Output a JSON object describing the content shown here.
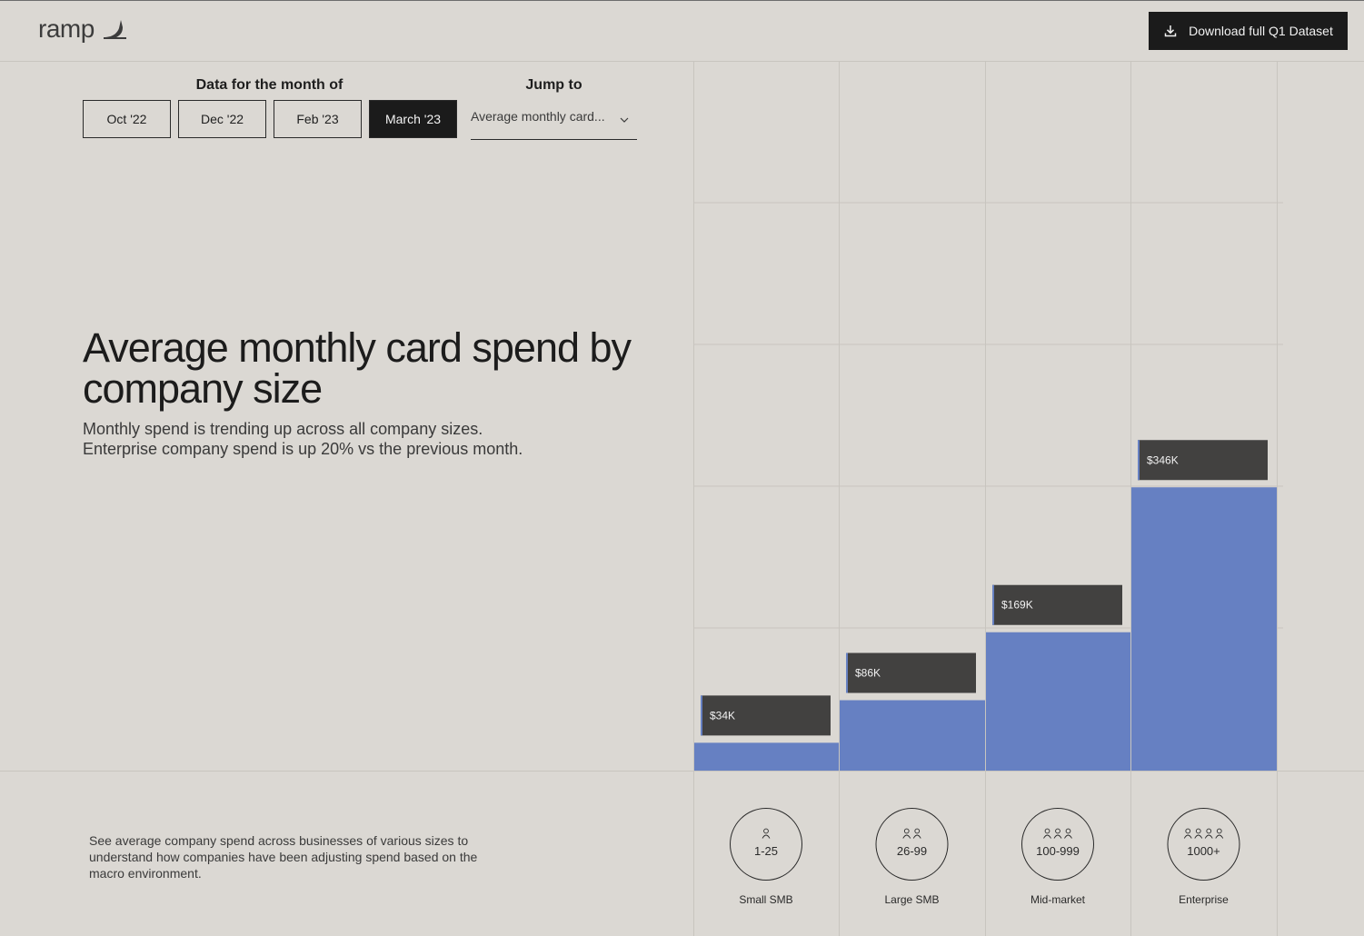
{
  "brand": {
    "name": "ramp"
  },
  "header": {
    "download_label": "Download full Q1 Dataset"
  },
  "controls": {
    "month_heading": "Data for the month of",
    "months": [
      {
        "label": "Oct '22",
        "active": false
      },
      {
        "label": "Dec '22",
        "active": false
      },
      {
        "label": "Feb '23",
        "active": false
      },
      {
        "label": "March '23",
        "active": true
      }
    ],
    "jump_heading": "Jump to",
    "jump_value": "Average monthly card..."
  },
  "content": {
    "title": "Average monthly card spend by company size",
    "subtitle_line1": "Monthly spend is trending up across all company sizes.",
    "subtitle_line2": "Enterprise company spend is up 20% vs the previous month.",
    "footer_text": "See average company spend across businesses of various sizes to understand how companies have been adjusting spend based on the macro environment."
  },
  "colors": {
    "bar": "#6680c2",
    "label_bg": "#424140",
    "background": "#dbd8d3"
  },
  "chart_data": {
    "type": "bar",
    "title": "Average monthly card spend by company size",
    "categories": [
      "Small SMB",
      "Large SMB",
      "Mid-market",
      "Enterprise"
    ],
    "category_codes": [
      "1-25",
      "26-99",
      "100-999",
      "1000+"
    ],
    "category_icon_counts": [
      1,
      2,
      3,
      4
    ],
    "values": [
      34,
      86,
      169,
      346
    ],
    "value_labels": [
      "$34K",
      "$86K",
      "$169K",
      "$346K"
    ],
    "unit": "thousands USD",
    "ylim": [
      0,
      400
    ],
    "grid": true,
    "xlabel": "",
    "ylabel": ""
  }
}
